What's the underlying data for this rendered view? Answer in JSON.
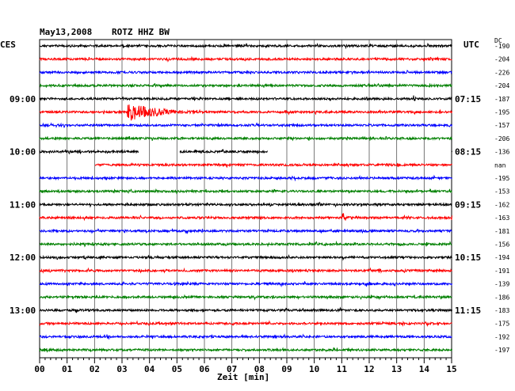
{
  "header": {
    "date": "May13,2008",
    "station": "ROTZ HHZ BW",
    "left_zone": "CES",
    "right_zone": "UTC",
    "dc_label": "DC"
  },
  "chart_data": {
    "type": "line",
    "title": "May13,2008  ROTZ HHZ BW",
    "xlabel": "Zeit [min]",
    "ylabel": "",
    "x_range": [
      0,
      15
    ],
    "x_ticks": [
      "00",
      "01",
      "02",
      "03",
      "04",
      "05",
      "06",
      "07",
      "08",
      "09",
      "10",
      "11",
      "12",
      "13",
      "14",
      "15"
    ],
    "grid": true,
    "trace_colors": [
      "#000000",
      "#ff0000",
      "#0000ff",
      "#008000"
    ],
    "left_time_labels": [
      {
        "trace": 4,
        "label": "09:00"
      },
      {
        "trace": 8,
        "label": "10:00"
      },
      {
        "trace": 12,
        "label": "11:00"
      },
      {
        "trace": 16,
        "label": "12:00"
      },
      {
        "trace": 20,
        "label": "13:00"
      }
    ],
    "right_time_labels": [
      {
        "trace": 4,
        "label": "07:15"
      },
      {
        "trace": 8,
        "label": "08:15"
      },
      {
        "trace": 12,
        "label": "09:15"
      },
      {
        "trace": 16,
        "label": "10:15"
      },
      {
        "trace": 20,
        "label": "11:15"
      }
    ],
    "dc_offsets": [
      "-190",
      "-204",
      "-226",
      "-204",
      "-187",
      "-195",
      "-157",
      "-206",
      "-136",
      "nan",
      "-195",
      "-153",
      "-162",
      "-163",
      "-181",
      "-156",
      "-194",
      "-191",
      "-139",
      "-186",
      "-183",
      "-175",
      "-192",
      "-197"
    ],
    "gaps": [
      {
        "trace": 8,
        "start_min": 3.6,
        "end_min": 5.1
      },
      {
        "trace": 8,
        "start_min": 8.3,
        "end_min": 15
      },
      {
        "trace": 9,
        "start_min": 0,
        "end_min": 2.0
      }
    ],
    "events": [
      {
        "trace": 5,
        "time_min": 3.2,
        "amplitude": "large",
        "duration_min": 3.5
      },
      {
        "trace": 13,
        "time_min": 11.0,
        "amplitude": "medium",
        "duration_min": 0.6
      },
      {
        "trace": 18,
        "time_min": 11.8,
        "amplitude": "small",
        "duration_min": 1.2
      },
      {
        "trace": 17,
        "time_min": 12.3,
        "amplitude": "small",
        "duration_min": 0.5
      },
      {
        "trace": 14,
        "time_min": 5.3,
        "amplitude": "small",
        "duration_min": 0.3
      },
      {
        "trace": 4,
        "time_min": 13.6,
        "amplitude": "small",
        "duration_min": 0.4
      }
    ],
    "trace_count": 24
  }
}
